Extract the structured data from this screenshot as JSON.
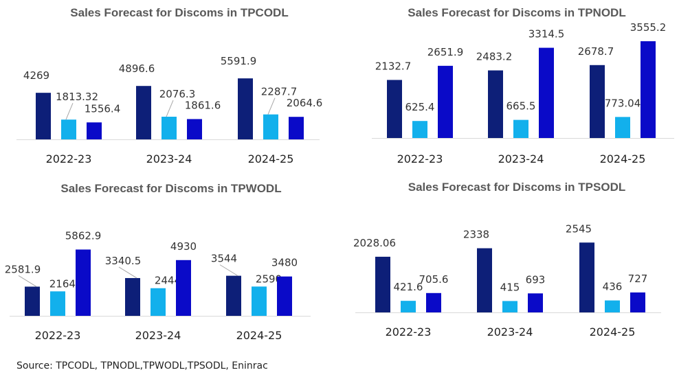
{
  "source": "Source: TPCODL, TPNODL,TPWODL,TPSODL, Eninrac",
  "colors": [
    "#0d1f78",
    "#12b0ec",
    "#0a0ac8"
  ],
  "chart_data": [
    {
      "type": "bar",
      "title": "Sales Forecast for Discoms in TPCODL",
      "categories": [
        "2022-23",
        "2023-24",
        "2024-25"
      ],
      "series": [
        {
          "values": [
            4269,
            4896.6,
            5591.9
          ],
          "labels": [
            "4269",
            "4896.6",
            "5591.9"
          ]
        },
        {
          "values": [
            1813.32,
            2076.3,
            2287.7
          ],
          "labels": [
            "1813.32",
            "2076.3",
            "2287.7"
          ]
        },
        {
          "values": [
            1556.4,
            1861.6,
            2064.6
          ],
          "labels": [
            "1556.4",
            "1861.6",
            "2064.6"
          ]
        }
      ]
    },
    {
      "type": "bar",
      "title": "Sales Forecast for Discoms in TPNODL",
      "categories": [
        "2022-23",
        "2023-24",
        "2024-25"
      ],
      "series": [
        {
          "values": [
            2132.7,
            2483.2,
            2678.7
          ],
          "labels": [
            "2132.7",
            "2483.2",
            "2678.7"
          ]
        },
        {
          "values": [
            625.4,
            665.5,
            773.04
          ],
          "labels": [
            "625.4",
            "665.5",
            "773.04"
          ]
        },
        {
          "values": [
            2651.9,
            3314.5,
            3555.2
          ],
          "labels": [
            "2651.9",
            "3314.5",
            "3555.2"
          ]
        }
      ]
    },
    {
      "type": "bar",
      "title": "Sales Forecast for Discoms in TPWODL",
      "categories": [
        "2022-23",
        "2023-24",
        "2024-25"
      ],
      "series": [
        {
          "values": [
            2581.9,
            3340.5,
            3544
          ],
          "labels": [
            "2581.9",
            "3340.5",
            "3544"
          ]
        },
        {
          "values": [
            2164.9,
            2444,
            2590
          ],
          "labels": [
            "2164.9",
            "2444",
            "2590"
          ]
        },
        {
          "values": [
            5862.9,
            4930,
            3480
          ],
          "labels": [
            "5862.9",
            "4930",
            "3480"
          ]
        }
      ]
    },
    {
      "type": "bar",
      "title": "Sales Forecast for Discoms in TPSODL",
      "categories": [
        "2022-23",
        "2023-24",
        "2024-25"
      ],
      "series": [
        {
          "values": [
            2028.06,
            2338,
            2545
          ],
          "labels": [
            "2028.06",
            "2338",
            "2545"
          ]
        },
        {
          "values": [
            421.6,
            415,
            436
          ],
          "labels": [
            "421.6",
            "415",
            "436"
          ]
        },
        {
          "values": [
            705.6,
            693,
            727
          ],
          "labels": [
            "705.6",
            "693",
            "727"
          ]
        }
      ]
    }
  ]
}
